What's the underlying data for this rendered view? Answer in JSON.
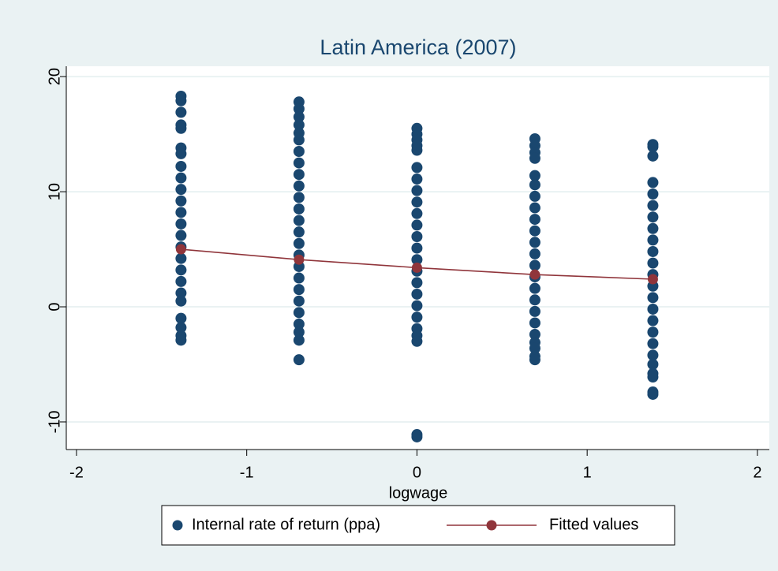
{
  "chart_data": {
    "type": "scatter",
    "title": "Latin America (2007)",
    "x_label": "logwage",
    "xlim": [
      -2.06,
      2.07
    ],
    "ylim": [
      -12.4,
      20.9
    ],
    "xticks": [
      -2,
      -1,
      0,
      1,
      2
    ],
    "yticks": [
      -10,
      0,
      10,
      20
    ],
    "grid": true,
    "legend": "bottom",
    "series": [
      {
        "name": "Internal rate of return (ppa)",
        "color": "#1a476f",
        "mode": "markers",
        "x": [
          -1.386,
          -1.386,
          -1.386,
          -1.386,
          -1.386,
          -1.386,
          -1.386,
          -1.386,
          -1.386,
          -1.386,
          -1.386,
          -1.386,
          -1.386,
          -1.386,
          -1.386,
          -1.386,
          -1.386,
          -1.386,
          -1.386,
          -1.386,
          -1.386,
          -1.386,
          -1.386,
          -1.386,
          -0.693,
          -0.693,
          -0.693,
          -0.693,
          -0.693,
          -0.693,
          -0.693,
          -0.693,
          -0.693,
          -0.693,
          -0.693,
          -0.693,
          -0.693,
          -0.693,
          -0.693,
          -0.693,
          -0.693,
          -0.693,
          -0.693,
          -0.693,
          -0.693,
          -0.693,
          -0.693,
          -0.693,
          -0.693,
          0,
          0,
          0,
          0,
          0,
          0,
          0,
          0,
          0,
          0,
          0,
          0,
          0,
          0,
          0,
          0,
          0,
          0,
          0,
          0,
          0,
          0,
          0,
          0,
          0.693,
          0.693,
          0.693,
          0.693,
          0.693,
          0.693,
          0.693,
          0.693,
          0.693,
          0.693,
          0.693,
          0.693,
          0.693,
          0.693,
          0.693,
          0.693,
          0.693,
          0.693,
          0.693,
          0.693,
          0.693,
          0.693,
          0.693,
          1.386,
          1.386,
          1.386,
          1.386,
          1.386,
          1.386,
          1.386,
          1.386,
          1.386,
          1.386,
          1.386,
          1.386,
          1.386,
          1.386,
          1.386,
          1.386,
          1.386,
          1.386,
          1.386,
          1.386,
          1.386,
          1.386,
          1.386,
          1.386
        ],
        "values": [
          18.3,
          17.9,
          16.9,
          15.8,
          15.5,
          13.8,
          13.3,
          12.2,
          11.2,
          10.2,
          9.2,
          8.2,
          7.2,
          6.2,
          5.2,
          4.2,
          3.2,
          2.2,
          1.2,
          0.5,
          -1.0,
          -1.8,
          -2.5,
          -2.9,
          17.8,
          17.2,
          16.5,
          15.8,
          15.1,
          14.5,
          13.5,
          12.5,
          11.5,
          10.5,
          9.5,
          8.5,
          7.5,
          6.5,
          5.5,
          4.5,
          3.5,
          2.5,
          1.5,
          0.5,
          -0.5,
          -1.5,
          -2.2,
          -2.9,
          -4.6,
          15.5,
          15.0,
          14.5,
          14.0,
          13.6,
          12.1,
          11.1,
          10.1,
          9.1,
          8.1,
          7.1,
          6.1,
          5.1,
          4.1,
          3.1,
          2.1,
          1.1,
          0.1,
          -0.9,
          -1.9,
          -2.5,
          -3.0,
          -11.1,
          -11.3,
          14.6,
          14.0,
          13.4,
          12.9,
          11.4,
          10.6,
          9.6,
          8.6,
          7.6,
          6.6,
          5.6,
          4.6,
          3.6,
          2.6,
          1.6,
          0.6,
          -0.4,
          -1.4,
          -2.4,
          -3.1,
          -3.6,
          -4.3,
          -4.6,
          14.1,
          13.9,
          13.1,
          10.8,
          9.8,
          8.8,
          7.8,
          6.8,
          5.8,
          4.8,
          3.8,
          2.8,
          1.8,
          0.8,
          -0.2,
          -1.2,
          -2.2,
          -3.2,
          -4.2,
          -5.0,
          -5.8,
          -6.1,
          -7.4,
          -7.6
        ]
      },
      {
        "name": "Fitted values",
        "color": "#90353b",
        "mode": "lines+markers",
        "x": [
          -1.386,
          -0.693,
          0,
          0.693,
          1.386
        ],
        "values": [
          5.0,
          4.1,
          3.4,
          2.8,
          2.4
        ]
      }
    ]
  }
}
